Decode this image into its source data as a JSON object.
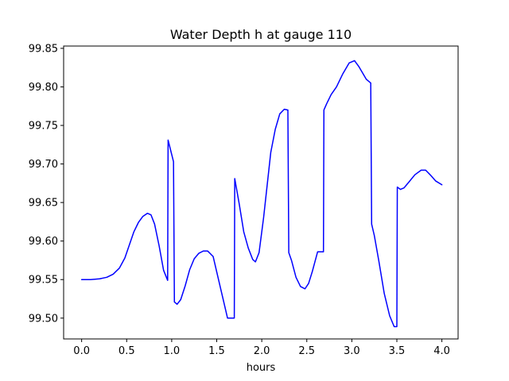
{
  "chart_data": {
    "type": "line",
    "title": "Water Depth h at gauge 110",
    "xlabel": "hours",
    "ylabel": "",
    "xlim": [
      -0.2,
      4.18
    ],
    "ylim": [
      99.473,
      99.853
    ],
    "xticks": [
      0.0,
      0.5,
      1.0,
      1.5,
      2.0,
      2.5,
      3.0,
      3.5,
      4.0
    ],
    "xtick_labels": [
      "0.0",
      "0.5",
      "1.0",
      "1.5",
      "2.0",
      "2.5",
      "3.0",
      "3.5",
      "4.0"
    ],
    "yticks": [
      99.5,
      99.55,
      99.6,
      99.65,
      99.7,
      99.75,
      99.8,
      99.85
    ],
    "ytick_labels": [
      "99.50",
      "99.55",
      "99.60",
      "99.65",
      "99.70",
      "99.75",
      "99.80",
      "99.85"
    ],
    "grid": false,
    "legend": "none",
    "series": [
      {
        "color": "#0000ff",
        "x": [
          0.0,
          0.1,
          0.2,
          0.28,
          0.35,
          0.42,
          0.48,
          0.53,
          0.58,
          0.63,
          0.68,
          0.73,
          0.77,
          0.81,
          0.86,
          0.91,
          0.955,
          0.96,
          1.02,
          1.03,
          1.06,
          1.1,
          1.15,
          1.2,
          1.25,
          1.3,
          1.35,
          1.4,
          1.46,
          1.5,
          1.55,
          1.62,
          1.695,
          1.7,
          1.75,
          1.8,
          1.85,
          1.9,
          1.93,
          1.97,
          2.02,
          2.1,
          2.15,
          2.2,
          2.25,
          2.29,
          2.3,
          2.33,
          2.38,
          2.43,
          2.48,
          2.52,
          2.56,
          2.62,
          2.685,
          2.69,
          2.72,
          2.77,
          2.83,
          2.9,
          2.97,
          3.03,
          3.08,
          3.12,
          3.16,
          3.21,
          3.22,
          3.25,
          3.3,
          3.36,
          3.42,
          3.47,
          3.5,
          3.505,
          3.54,
          3.58,
          3.63,
          3.7,
          3.77,
          3.82,
          3.87,
          3.93,
          4.0
        ],
        "y": [
          99.55,
          99.55,
          99.551,
          99.553,
          99.557,
          99.565,
          99.578,
          99.595,
          99.612,
          99.624,
          99.632,
          99.636,
          99.634,
          99.622,
          99.594,
          99.562,
          99.549,
          99.731,
          99.703,
          99.521,
          99.518,
          99.524,
          99.542,
          99.563,
          99.577,
          99.584,
          99.587,
          99.587,
          99.58,
          99.56,
          99.535,
          99.5,
          99.5,
          99.681,
          99.648,
          99.612,
          99.591,
          99.576,
          99.573,
          99.585,
          99.63,
          99.715,
          99.745,
          99.765,
          99.771,
          99.77,
          99.585,
          99.575,
          99.553,
          99.541,
          99.538,
          99.545,
          99.56,
          99.586,
          99.586,
          99.77,
          99.778,
          99.79,
          99.8,
          99.817,
          99.831,
          99.834,
          99.826,
          99.818,
          99.81,
          99.805,
          99.622,
          99.607,
          99.574,
          99.532,
          99.503,
          99.489,
          99.489,
          99.67,
          99.667,
          99.669,
          99.676,
          99.686,
          99.692,
          99.692,
          99.686,
          99.678,
          99.673
        ]
      }
    ]
  }
}
